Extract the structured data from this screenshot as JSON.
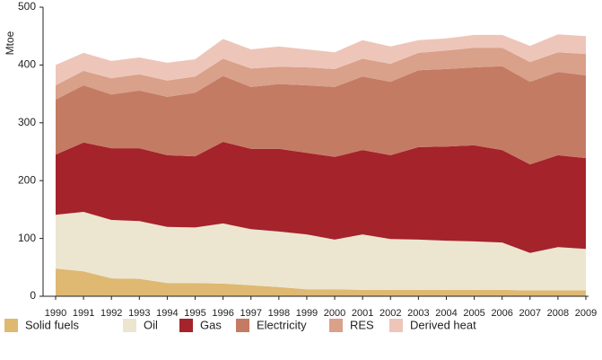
{
  "chart_data": {
    "type": "stacked-area",
    "y_label": "Mtoe",
    "categories": [
      "1990",
      "1991",
      "1992",
      "1993",
      "1994",
      "1995",
      "1996",
      "1997",
      "1998",
      "1999",
      "2000",
      "2001",
      "2002",
      "2003",
      "2004",
      "2005",
      "2006",
      "2007",
      "2008",
      "2009"
    ],
    "ylim": [
      0,
      500
    ],
    "yticks": [
      0,
      100,
      200,
      300,
      400,
      500
    ],
    "legend": "bottom",
    "series": [
      {
        "name": "Solid fuels",
        "color": "#dfb872",
        "values": [
          48,
          43,
          31,
          30,
          23,
          23,
          22,
          19,
          16,
          12,
          12,
          11,
          11,
          11,
          11,
          11,
          11,
          10,
          10,
          10
        ]
      },
      {
        "name": "Oil",
        "color": "#ece6d0",
        "values": [
          93,
          103,
          101,
          100,
          97,
          96,
          104,
          97,
          96,
          95,
          86,
          96,
          88,
          87,
          85,
          84,
          82,
          65,
          75,
          72
        ]
      },
      {
        "name": "Gas",
        "color": "#a5232b",
        "values": [
          104,
          120,
          124,
          126,
          124,
          123,
          141,
          139,
          143,
          141,
          143,
          146,
          145,
          160,
          163,
          166,
          160,
          153,
          159,
          157
        ]
      },
      {
        "name": "Electricity",
        "color": "#c47b63",
        "values": [
          95,
          99,
          93,
          100,
          101,
          110,
          114,
          107,
          112,
          117,
          121,
          127,
          127,
          133,
          134,
          135,
          145,
          143,
          144,
          143
        ]
      },
      {
        "name": "RES",
        "color": "#d9a08a",
        "values": [
          25,
          25,
          28,
          28,
          28,
          28,
          30,
          32,
          30,
          31,
          31,
          31,
          31,
          30,
          32,
          34,
          32,
          34,
          34,
          37
        ]
      },
      {
        "name": "Derived heat",
        "color": "#edc6b9",
        "values": [
          35,
          31,
          30,
          29,
          31,
          30,
          34,
          33,
          35,
          31,
          29,
          32,
          30,
          22,
          21,
          22,
          22,
          28,
          31,
          31
        ]
      }
    ]
  }
}
